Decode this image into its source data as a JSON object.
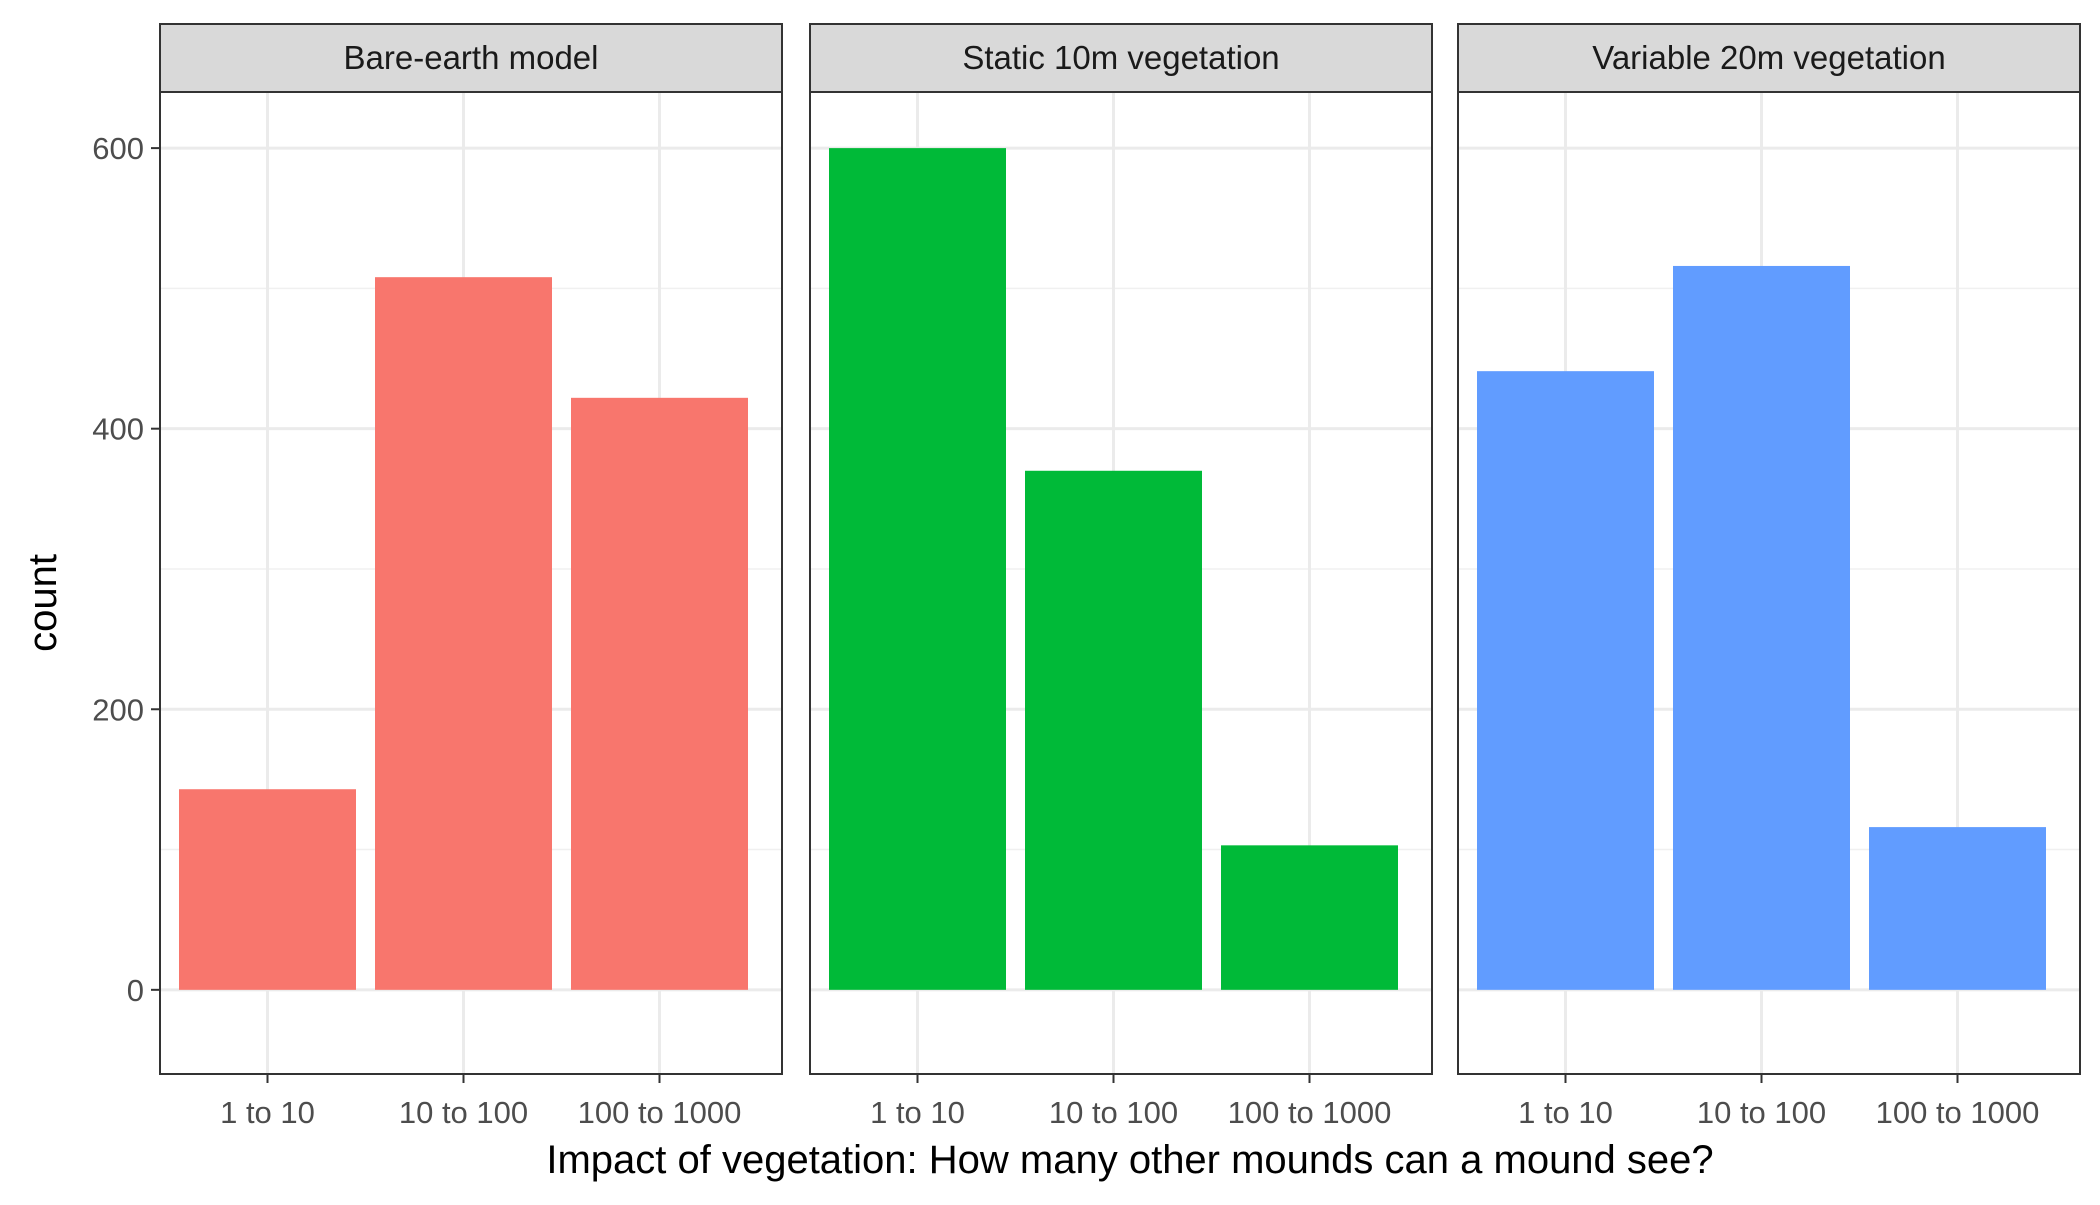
{
  "chart_data": {
    "type": "bar",
    "xlabel": "Impact of vegetation: How many other mounds can a mound see?",
    "ylabel": "count",
    "categories": [
      "1 to 10",
      "10 to 100",
      "100 to 1000"
    ],
    "ylim": [
      -60,
      640
    ],
    "y_ticks": [
      0,
      200,
      400,
      600
    ],
    "grid": true,
    "facets": [
      {
        "name": "Bare-earth model",
        "color": "#F8766D",
        "values": [
          143,
          508,
          422
        ]
      },
      {
        "name": "Static 10m vegetation",
        "color": "#00BA38",
        "values": [
          600,
          370,
          103
        ]
      },
      {
        "name": "Variable 20m vegetation",
        "color": "#619CFF",
        "values": [
          441,
          516,
          116
        ]
      }
    ]
  }
}
